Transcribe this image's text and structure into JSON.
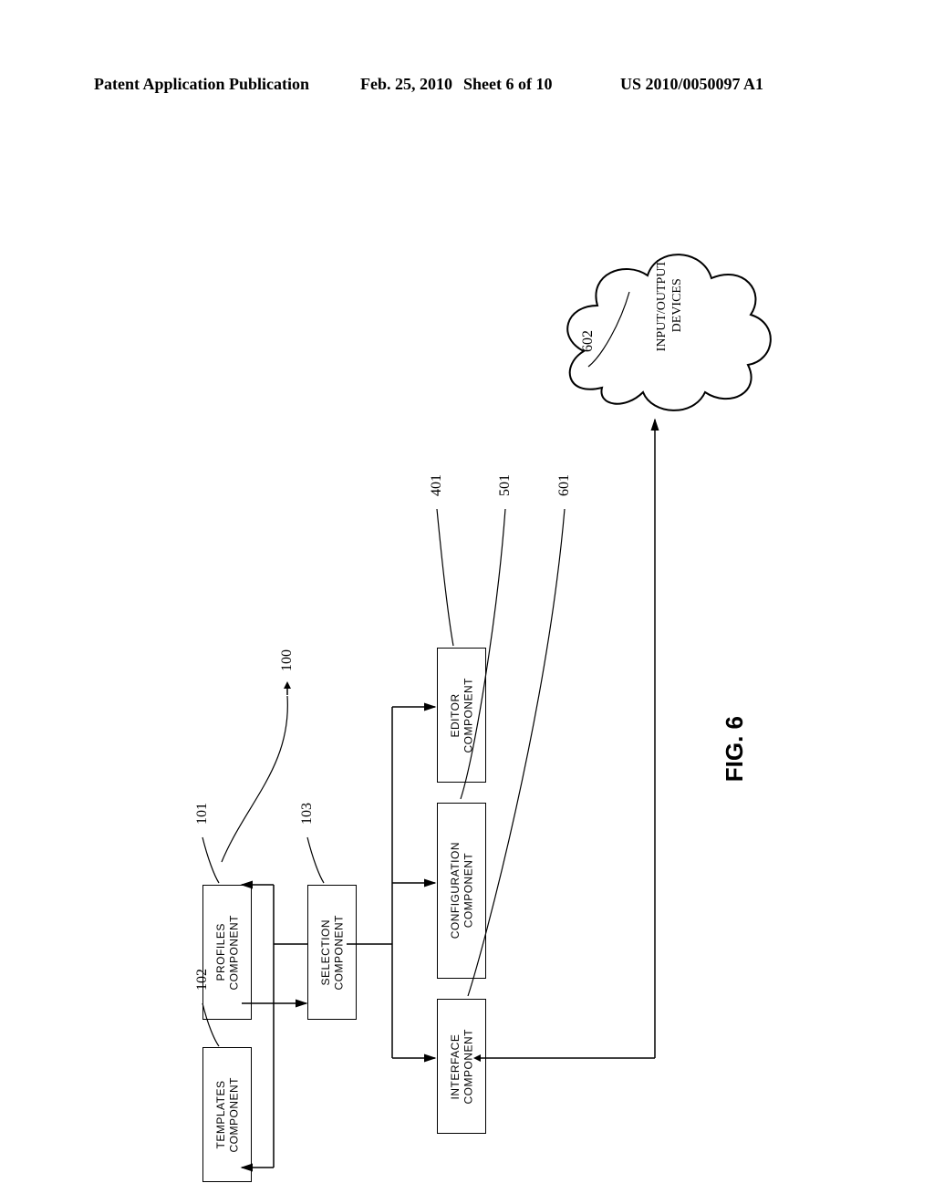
{
  "header": {
    "left": "Patent Application Publication",
    "date": "Feb. 25, 2010",
    "sheet": "Sheet 6 of 10",
    "right": "US 2010/0050097 A1"
  },
  "boxes": {
    "profiles": "PROFILES\nCOMPONENT",
    "templates": "TEMPLATES\nCOMPONENT",
    "selection": "SELECTION\nCOMPONENT",
    "editor": "EDITOR\nCOMPONENT",
    "configuration": "CONFIGURATION\nCOMPONENT",
    "interface": "INTERFACE\nCOMPONENT"
  },
  "cloud": "INPUT/OUTPUT\nDEVICES",
  "refs": {
    "r100": "100",
    "r101": "101",
    "r102": "102",
    "r103": "103",
    "r401": "401",
    "r501": "501",
    "r601": "601",
    "r602": "602"
  },
  "figure": "FIG. 6",
  "style": {
    "box_border": "#000000",
    "background": "#ffffff",
    "line_width": 1.5,
    "arrow_size": 8
  }
}
